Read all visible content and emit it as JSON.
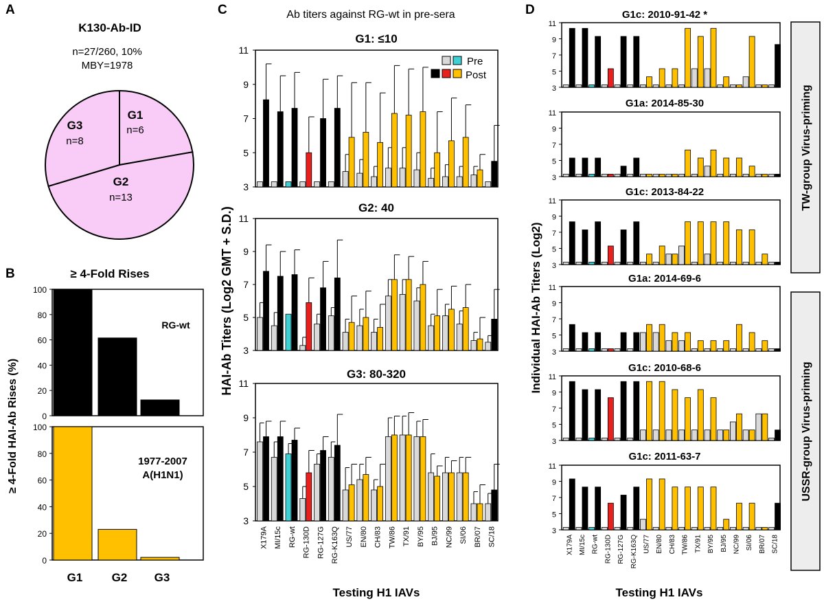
{
  "panel_labels": [
    "A",
    "B",
    "C",
    "D"
  ],
  "panelA": {
    "title": "K130-Ab-ID",
    "line1": "n=27/260, 10%",
    "line2": "MBY=1978",
    "slices": [
      {
        "label": "G1",
        "n": "n=6",
        "value": 6
      },
      {
        "label": "G2",
        "n": "n=13",
        "value": 13
      },
      {
        "label": "G3",
        "n": "n=8",
        "value": 8
      }
    ],
    "fill": "#f8ccf6"
  },
  "panelB": {
    "title": "≥ 4-Fold Rises",
    "ylabel": "≥ 4-Fold HAI-Ab Rises (%)",
    "yticks": [
      0,
      20,
      40,
      60,
      80,
      100
    ],
    "categories": [
      "G1",
      "G2",
      "G3"
    ],
    "top": {
      "label": "RG-wt",
      "color": "#000000",
      "values": [
        100,
        61.5,
        12.5
      ]
    },
    "bottom": {
      "label1": "1977-2007",
      "label2": "A(H1N1)",
      "color": "#ffc000",
      "values": [
        100,
        23,
        2
      ]
    }
  },
  "panelC": {
    "title": "Ab titers against RG-wt in pre-sera",
    "ylabel": "HAI-Ab Titers (Log2 GMT + S.D.)",
    "xlabel": "Testing H1 IAVs",
    "yticks": [
      3,
      5,
      7,
      9,
      11
    ],
    "legend": {
      "pre": "Pre",
      "post": "Post"
    },
    "viruses": [
      "X179A",
      "MI/15c",
      "RG-wt",
      "RG-130D",
      "RG-127G",
      "RG-K163Q",
      "US/77",
      "EN/80",
      "CH/83",
      "TW/86",
      "TX/91",
      "BY/95",
      "BJ/95",
      "NC/99",
      "SI/06",
      "BR/07",
      "SC/18"
    ],
    "groups": [
      {
        "title": "G1: ≤10",
        "pre": [
          3.3,
          3.3,
          3.3,
          3.3,
          3.3,
          3.3,
          3.9,
          3.8,
          3.6,
          4.1,
          4.1,
          4.0,
          3.5,
          3.6,
          3.6,
          3.7,
          3.3
        ],
        "post": [
          8.1,
          7.4,
          7.6,
          5.0,
          7.0,
          7.6,
          5.9,
          6.2,
          5.6,
          7.3,
          7.2,
          7.4,
          5.0,
          5.7,
          5.9,
          4.0,
          4.5
        ],
        "pre_sd": [
          0,
          0,
          0,
          0,
          0,
          0,
          1.0,
          0.8,
          0.6,
          1.2,
          1.2,
          1.0,
          0.6,
          0.7,
          0.6,
          0.5,
          0
        ],
        "post_sd": [
          2.1,
          2.1,
          2.1,
          2.1,
          2.3,
          1.9,
          3.2,
          2.9,
          2.9,
          2.8,
          2.7,
          2.6,
          2.4,
          2.5,
          1.9,
          0.9,
          2.1
        ]
      },
      {
        "title": "G2: 40",
        "pre": [
          5.0,
          4.5,
          5.2,
          3.3,
          4.6,
          5.1,
          4.1,
          4.5,
          4.1,
          6.3,
          6.4,
          6.0,
          4.5,
          5.1,
          4.6,
          3.6,
          3.5
        ],
        "post": [
          7.8,
          7.5,
          7.6,
          5.9,
          6.8,
          7.4,
          4.7,
          5.0,
          4.4,
          7.3,
          7.3,
          7.0,
          5.1,
          5.5,
          5.6,
          3.7,
          4.9
        ],
        "pre_sd": [
          0.9,
          0.8,
          0,
          0.5,
          0.6,
          0.5,
          0.8,
          1.0,
          0.8,
          1.0,
          0.9,
          0.8,
          0.7,
          0.7,
          0.8,
          0.5,
          0.4
        ],
        "post_sd": [
          1.6,
          1.5,
          1.5,
          1.5,
          1.6,
          2.3,
          1.6,
          1.6,
          1.4,
          1.5,
          1.4,
          1.4,
          1.6,
          1.4,
          1.4,
          1.3,
          1.8
        ]
      },
      {
        "title": "G3: 80-320",
        "pre": [
          7.6,
          6.7,
          6.9,
          4.3,
          6.3,
          6.7,
          4.8,
          5.4,
          4.8,
          7.9,
          8.0,
          7.9,
          5.8,
          5.8,
          5.8,
          4.0,
          4.0
        ],
        "post": [
          7.9,
          7.9,
          7.7,
          5.8,
          7.1,
          7.4,
          5.1,
          5.7,
          5.0,
          8.0,
          8.0,
          7.9,
          5.6,
          5.8,
          5.8,
          4.0,
          4.8
        ],
        "pre_sd": [
          1.1,
          0.9,
          0.6,
          0.7,
          0.6,
          0.9,
          1.3,
          0.9,
          0.6,
          1.1,
          1.1,
          0.9,
          1.1,
          0.9,
          0.9,
          0.7,
          0.6
        ],
        "post_sd": [
          0.9,
          0.9,
          0.7,
          1.3,
          0.8,
          1.8,
          1.2,
          1.0,
          1.3,
          1.1,
          1.3,
          1.0,
          0.6,
          0.7,
          0.9,
          1.1,
          1.5
        ]
      }
    ]
  },
  "panelD": {
    "ylabel": "Individual HAI-Ab Titers (Log2)",
    "xlabel": "Testing H1 IAVs",
    "yticks": [
      3,
      5,
      7,
      9,
      11
    ],
    "side_labels": [
      "TW-group Virus-priming",
      "USSR-group Virus-priming"
    ],
    "subjects": [
      {
        "title": "G1c: 2010-91-42 *",
        "pre": [
          3.3,
          3.3,
          3.3,
          3.3,
          3.3,
          3.3,
          3.3,
          3.3,
          3.3,
          3.3,
          5.3,
          5.3,
          3.3,
          3.3,
          4.3,
          3.3,
          3.3
        ],
        "post": [
          10.3,
          10.3,
          9.3,
          5.3,
          9.3,
          9.3,
          4.3,
          5.3,
          5.3,
          10.3,
          9.3,
          10.3,
          4.3,
          3.3,
          9.3,
          3.3,
          8.3
        ]
      },
      {
        "title": "G1a: 2014-85-30",
        "pre": [
          3.3,
          3.3,
          3.3,
          3.3,
          3.3,
          3.3,
          3.3,
          3.3,
          3.3,
          3.3,
          3.3,
          4.3,
          3.3,
          3.3,
          3.3,
          3.3,
          3.3
        ],
        "post": [
          5.3,
          5.3,
          5.3,
          3.3,
          4.3,
          5.3,
          3.3,
          3.3,
          3.3,
          6.3,
          5.3,
          6.3,
          5.3,
          5.3,
          4.3,
          3.3,
          3.3
        ]
      },
      {
        "title": "G1c: 2013-84-22",
        "pre": [
          3.3,
          3.3,
          3.3,
          3.3,
          3.3,
          3.3,
          3.3,
          3.3,
          4.3,
          5.3,
          3.3,
          4.3,
          3.3,
          3.3,
          3.3,
          3.3,
          3.3
        ],
        "post": [
          8.3,
          7.3,
          8.3,
          5.3,
          7.3,
          8.3,
          4.3,
          5.3,
          4.3,
          8.3,
          8.3,
          8.3,
          8.3,
          7.3,
          7.3,
          4.3,
          3.3
        ]
      },
      {
        "title": "G1a: 2014-69-6",
        "pre": [
          3.3,
          3.3,
          3.3,
          3.3,
          3.3,
          3.3,
          5.3,
          5.3,
          4.3,
          4.3,
          3.3,
          3.3,
          3.3,
          3.3,
          3.3,
          3.3,
          3.3
        ],
        "post": [
          6.3,
          5.3,
          5.3,
          3.3,
          5.3,
          5.3,
          6.3,
          6.3,
          5.3,
          5.3,
          4.3,
          4.3,
          4.3,
          6.3,
          5.3,
          4.3,
          3.3
        ]
      },
      {
        "title": "G1c: 2010-68-6",
        "pre": [
          3.3,
          3.3,
          3.3,
          3.3,
          3.3,
          3.3,
          4.3,
          4.3,
          4.3,
          4.3,
          4.3,
          4.3,
          4.3,
          5.3,
          4.3,
          6.3,
          3.3
        ],
        "post": [
          10.3,
          9.3,
          9.3,
          8.3,
          10.3,
          10.3,
          10.3,
          10.3,
          9.3,
          8.3,
          9.3,
          8.3,
          4.3,
          6.3,
          4.3,
          6.3,
          4.3
        ]
      },
      {
        "title": "G1c: 2011-63-7",
        "pre": [
          3.3,
          3.3,
          3.3,
          3.3,
          3.3,
          3.3,
          4.3,
          3.3,
          3.3,
          3.3,
          3.3,
          3.3,
          3.3,
          3.3,
          3.3,
          3.3,
          3.3
        ],
        "post": [
          9.3,
          8.3,
          8.3,
          6.3,
          7.3,
          8.3,
          9.3,
          9.3,
          8.3,
          8.3,
          8.3,
          8.3,
          4.3,
          6.3,
          6.3,
          3.3,
          6.3
        ]
      }
    ]
  },
  "colors": {
    "black": "#000000",
    "gold": "#ffc000",
    "red": "#e8211f",
    "cyan": "#3fd0d4",
    "pre_grey": "#d9d9d9",
    "label_red": "#c00000",
    "side_box": "#ededed"
  },
  "chart_data": [
    {
      "panel": "A",
      "type": "pie",
      "title": "K130-Ab-ID",
      "categories": [
        "G1",
        "G2",
        "G3"
      ],
      "values": [
        6,
        13,
        8
      ]
    },
    {
      "panel": "B",
      "type": "bar",
      "title": "≥ 4-Fold Rises",
      "ylabel": "≥ 4-Fold HAI-Ab Rises (%)",
      "ylim": [
        0,
        100
      ],
      "categories": [
        "G1",
        "G2",
        "G3"
      ],
      "series": [
        {
          "name": "RG-wt",
          "values": [
            100,
            61.5,
            12.5
          ]
        },
        {
          "name": "1977-2007 A(H1N1)",
          "values": [
            100,
            23,
            2
          ]
        }
      ]
    },
    {
      "panel": "C",
      "type": "bar",
      "title": "Ab titers against RG-wt in pre-sera",
      "ylabel": "HAI-Ab Titers (Log2 GMT + S.D.)",
      "xlabel": "Testing H1 IAVs",
      "ylim": [
        3,
        11
      ],
      "note_ref": "values in panelC.groups"
    },
    {
      "panel": "D",
      "type": "bar",
      "ylabel": "Individual HAI-Ab Titers (Log2)",
      "xlabel": "Testing H1 IAVs",
      "ylim": [
        3,
        11
      ],
      "note_ref": "values in panelD.subjects"
    }
  ]
}
